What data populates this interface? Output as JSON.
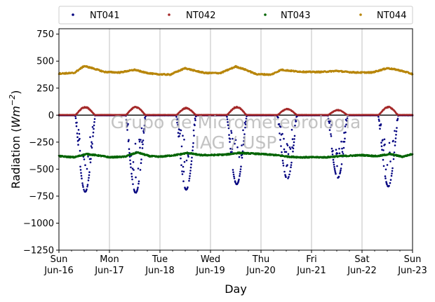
{
  "chart_data": {
    "type": "scatter",
    "xlabel": "Day",
    "ylabel": "Radiation (",
    "ylabel_unit": "Wm",
    "ylabel_exp": "−2",
    "ylabel_close": ")",
    "ylim": [
      -1250,
      800
    ],
    "xlim": [
      0,
      7
    ],
    "yticks": [
      -1250,
      -1000,
      -750,
      -500,
      -250,
      0,
      250,
      500,
      750
    ],
    "ytick_labels": [
      "−1250",
      "−1000",
      "−750",
      "−500",
      "−250",
      "0",
      "250",
      "500",
      "750"
    ],
    "xticks": [
      {
        "x": 0,
        "line1": "Sun",
        "line2": "Jun-16"
      },
      {
        "x": 1,
        "line1": "Mon",
        "line2": "Jun-17"
      },
      {
        "x": 2,
        "line1": "Tue",
        "line2": "Jun-18"
      },
      {
        "x": 3,
        "line1": "Wed",
        "line2": "Jun-19"
      },
      {
        "x": 4,
        "line1": "Thu",
        "line2": "Jun-20"
      },
      {
        "x": 5,
        "line1": "Fri",
        "line2": "Jun-21"
      },
      {
        "x": 6,
        "line1": "Sat",
        "line2": "Jun-22"
      },
      {
        "x": 7,
        "line1": "Sun",
        "line2": "Jun-23"
      }
    ],
    "grid": "vertical",
    "legend_position": "top",
    "watermark_line1": "Grupo de Micrometeorologia",
    "watermark_line2": "IAG / USP",
    "series": [
      {
        "name": "NT041",
        "color": "#00007f",
        "kind": "shortwave-down",
        "days": [
          {
            "start": 0.32,
            "end": 0.72,
            "peak": -710
          },
          {
            "start": 1.32,
            "end": 1.72,
            "peak": -720
          },
          {
            "start": 2.32,
            "end": 2.72,
            "peak": -690
          },
          {
            "start": 3.32,
            "end": 3.72,
            "peak": -640
          },
          {
            "start": 4.32,
            "end": 4.72,
            "peak": -590
          },
          {
            "start": 5.32,
            "end": 5.72,
            "peak": -580
          },
          {
            "start": 6.32,
            "end": 6.72,
            "peak": -660
          }
        ]
      },
      {
        "name": "NT042",
        "color": "#a52a2a",
        "kind": "shortwave-up",
        "days": [
          {
            "start": 0.32,
            "end": 0.72,
            "peak": 80
          },
          {
            "start": 1.32,
            "end": 1.72,
            "peak": 80
          },
          {
            "start": 2.32,
            "end": 2.72,
            "peak": 70
          },
          {
            "start": 3.32,
            "end": 3.72,
            "peak": 80
          },
          {
            "start": 4.32,
            "end": 4.72,
            "peak": 60
          },
          {
            "start": 5.32,
            "end": 5.72,
            "peak": 50
          },
          {
            "start": 6.32,
            "end": 6.72,
            "peak": 80
          }
        ]
      },
      {
        "name": "NT043",
        "color": "#006400",
        "kind": "longwave-down",
        "points": [
          [
            0,
            -380
          ],
          [
            0.3,
            -390
          ],
          [
            0.55,
            -360
          ],
          [
            0.8,
            -375
          ],
          [
            1.0,
            -390
          ],
          [
            1.3,
            -385
          ],
          [
            1.55,
            -345
          ],
          [
            1.8,
            -380
          ],
          [
            2.0,
            -385
          ],
          [
            2.3,
            -370
          ],
          [
            2.55,
            -350
          ],
          [
            2.8,
            -370
          ],
          [
            3.0,
            -370
          ],
          [
            3.3,
            -365
          ],
          [
            3.55,
            -350
          ],
          [
            3.8,
            -355
          ],
          [
            4.0,
            -360
          ],
          [
            4.3,
            -370
          ],
          [
            4.55,
            -385
          ],
          [
            4.8,
            -390
          ],
          [
            5.0,
            -390
          ],
          [
            5.3,
            -390
          ],
          [
            5.55,
            -380
          ],
          [
            5.8,
            -375
          ],
          [
            6.0,
            -370
          ],
          [
            6.3,
            -380
          ],
          [
            6.55,
            -360
          ],
          [
            6.8,
            -385
          ],
          [
            7.0,
            -360
          ]
        ]
      },
      {
        "name": "NT044",
        "color": "#b8860b",
        "kind": "longwave-up",
        "points": [
          [
            0,
            385
          ],
          [
            0.3,
            390
          ],
          [
            0.5,
            455
          ],
          [
            0.7,
            430
          ],
          [
            0.9,
            400
          ],
          [
            1.2,
            395
          ],
          [
            1.5,
            420
          ],
          [
            1.7,
            395
          ],
          [
            1.9,
            380
          ],
          [
            2.2,
            375
          ],
          [
            2.5,
            435
          ],
          [
            2.7,
            410
          ],
          [
            2.9,
            390
          ],
          [
            3.2,
            390
          ],
          [
            3.5,
            450
          ],
          [
            3.7,
            420
          ],
          [
            3.9,
            380
          ],
          [
            4.2,
            375
          ],
          [
            4.4,
            420
          ],
          [
            4.7,
            405
          ],
          [
            4.9,
            400
          ],
          [
            5.2,
            400
          ],
          [
            5.5,
            410
          ],
          [
            5.7,
            400
          ],
          [
            5.9,
            395
          ],
          [
            6.2,
            395
          ],
          [
            6.5,
            435
          ],
          [
            6.7,
            420
          ],
          [
            6.9,
            395
          ],
          [
            7.0,
            380
          ]
        ]
      }
    ]
  }
}
